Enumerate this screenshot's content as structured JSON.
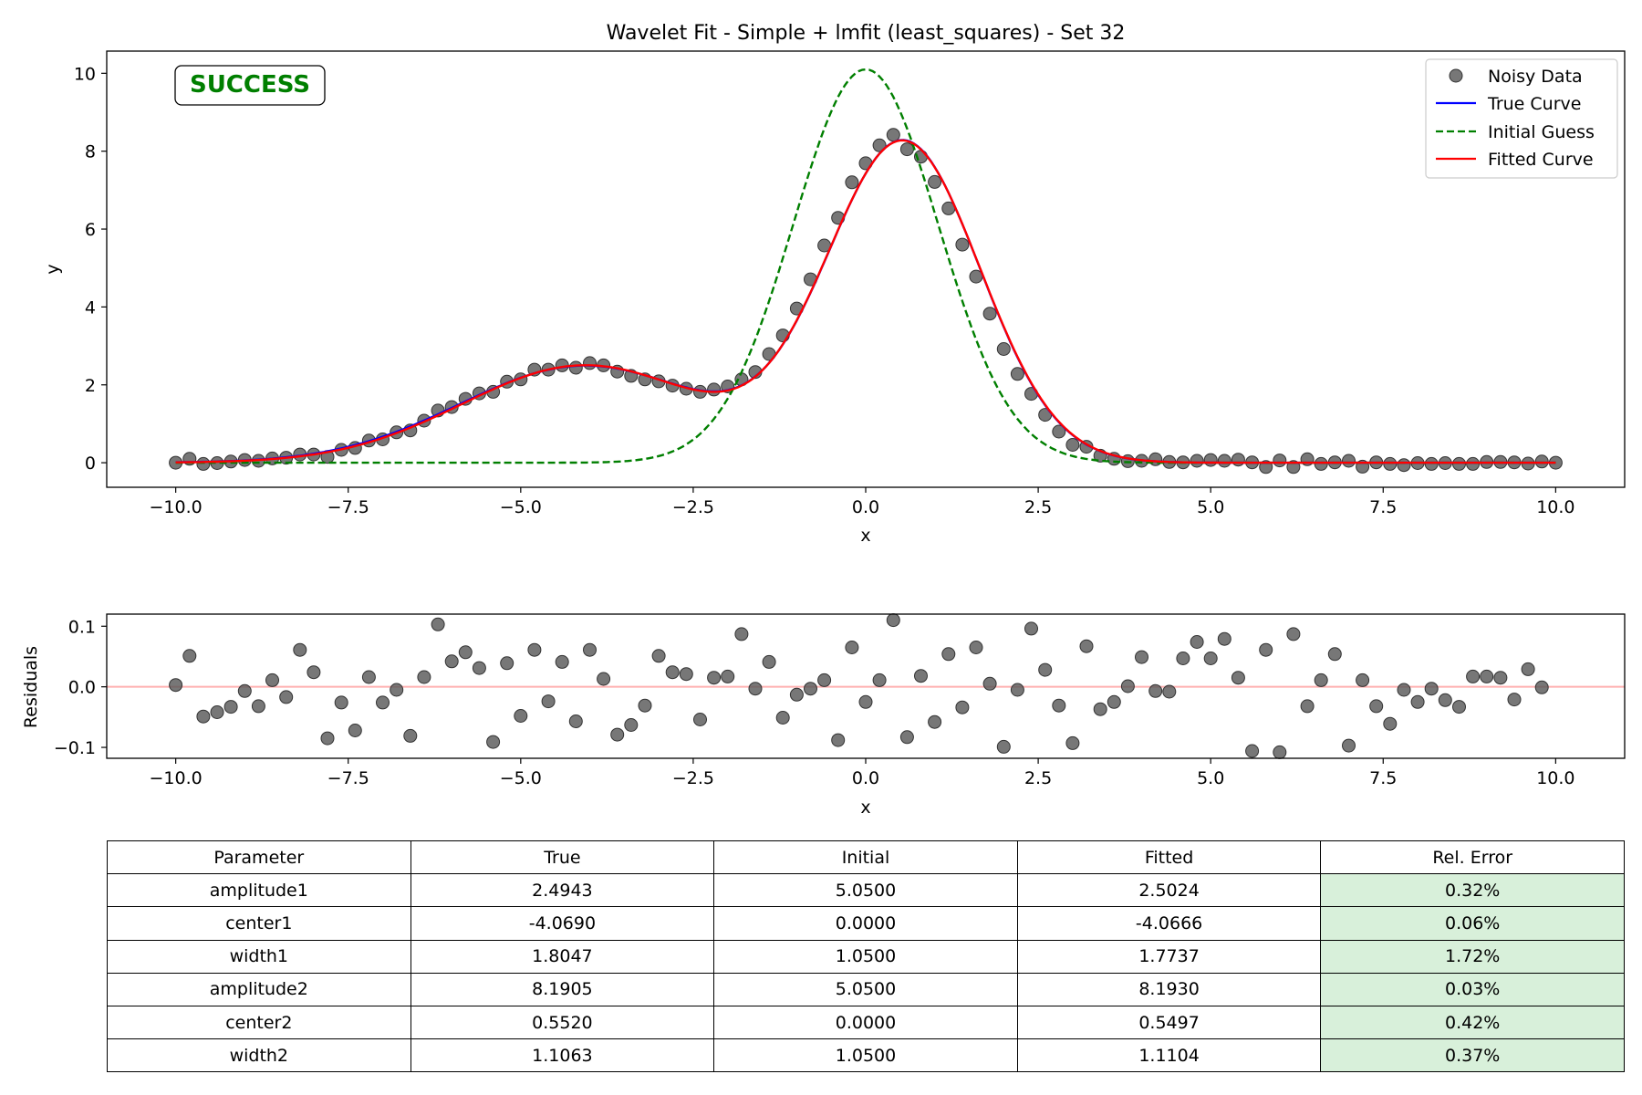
{
  "chart_data": [
    {
      "type": "line",
      "title": "Wavelet Fit - Simple + lmfit (least_squares) - Set 32",
      "xlabel": "x",
      "ylabel": "y",
      "xlim": [
        -11.0,
        11.0
      ],
      "ylim": [
        -0.63,
        10.57
      ],
      "xticks": [
        -10.0,
        -7.5,
        -5.0,
        -2.5,
        0.0,
        2.5,
        5.0,
        7.5,
        10.0
      ],
      "xtick_labels": [
        "−10.0",
        "−7.5",
        "−5.0",
        "−2.5",
        "0.0",
        "2.5",
        "5.0",
        "7.5",
        "10.0"
      ],
      "yticks": [
        0,
        2,
        4,
        6,
        8,
        10
      ],
      "ytick_labels": [
        "0",
        "2",
        "4",
        "6",
        "8",
        "10"
      ],
      "grid": false,
      "legend_position": "top-right",
      "status_text": "SUCCESS",
      "status_color": "#007f00",
      "series": [
        {
          "name": "Noisy Data",
          "kind": "scatter",
          "color": "#555555",
          "y": [
            0.0,
            0.1,
            -0.03,
            -0.01,
            0.03,
            0.07,
            0.05,
            0.11,
            0.13,
            0.21,
            0.21,
            0.15,
            0.33,
            0.38,
            0.57,
            0.6,
            0.78,
            0.83,
            1.08,
            1.34,
            1.43,
            1.64,
            1.78,
            1.82,
            2.08,
            2.14,
            2.39,
            2.39,
            2.5,
            2.44,
            2.56,
            2.5,
            2.34,
            2.23,
            2.14,
            2.09,
            1.98,
            1.9,
            1.82,
            1.88,
            1.96,
            2.14,
            2.33,
            2.79,
            3.27,
            3.96,
            4.71,
            5.58,
            6.29,
            7.2,
            7.69,
            8.15,
            8.42,
            8.05,
            7.86,
            7.21,
            6.53,
            5.6,
            4.78,
            3.83,
            2.92,
            2.28,
            1.77,
            1.23,
            0.8,
            0.46,
            0.41,
            0.18,
            0.1,
            0.04,
            0.05,
            0.09,
            0.02,
            0.01,
            0.05,
            0.07,
            0.05,
            0.08,
            0.01,
            -0.11,
            0.06,
            -0.11,
            0.09,
            -0.03,
            0.01,
            0.05,
            -0.1,
            0.01,
            -0.03,
            -0.06,
            -0.01,
            -0.03,
            -0.01,
            -0.03,
            -0.03,
            0.02,
            0.02,
            0.01,
            -0.02,
            0.03,
            0.0
          ]
        },
        {
          "name": "True Curve",
          "kind": "line",
          "color": "#0000ff",
          "params": {
            "amplitude1": 2.4943,
            "center1": -4.069,
            "width1": 1.8047,
            "amplitude2": 8.1905,
            "center2": 0.552,
            "width2": 1.1063
          }
        },
        {
          "name": "Initial Guess",
          "kind": "line",
          "dash": true,
          "color": "#007f00",
          "params": {
            "amplitude1": 5.05,
            "center1": 0.0,
            "width1": 1.05,
            "amplitude2": 5.05,
            "center2": 0.0,
            "width2": 1.05
          }
        },
        {
          "name": "Fitted Curve",
          "kind": "line",
          "color": "#ff0000",
          "params": {
            "amplitude1": 2.5024,
            "center1": -4.0666,
            "width1": 1.7737,
            "amplitude2": 8.193,
            "center2": 0.5497,
            "width2": 1.1104
          }
        }
      ]
    },
    {
      "type": "scatter",
      "title": "",
      "xlabel": "x",
      "ylabel": "Residuals",
      "xlim": [
        -11.0,
        11.0
      ],
      "ylim": [
        -0.118,
        0.12
      ],
      "xticks": [
        -10.0,
        -7.5,
        -5.0,
        -2.5,
        0.0,
        2.5,
        5.0,
        7.5,
        10.0
      ],
      "xtick_labels": [
        "−10.0",
        "−7.5",
        "−5.0",
        "−2.5",
        "0.0",
        "2.5",
        "5.0",
        "7.5",
        "10.0"
      ],
      "yticks": [
        -0.1,
        0.0,
        0.1
      ],
      "ytick_labels": [
        "−0.1",
        "0.0",
        "0.1"
      ],
      "zero_line_color": "#ffb0b0",
      "series": [
        {
          "name": "",
          "color": "#555555",
          "y": [
            0.003,
            0.051,
            -0.049,
            -0.042,
            -0.033,
            -0.007,
            -0.032,
            0.011,
            -0.017,
            0.061,
            0.024,
            -0.085,
            -0.026,
            -0.072,
            0.016,
            -0.026,
            -0.005,
            -0.081,
            0.016,
            0.103,
            0.042,
            0.057,
            0.031,
            -0.091,
            0.039,
            -0.048,
            0.061,
            -0.024,
            0.041,
            -0.057,
            0.061,
            0.013,
            -0.079,
            -0.063,
            -0.031,
            0.051,
            0.024,
            0.021,
            -0.054,
            0.015,
            0.017,
            0.087,
            -0.003,
            0.041,
            -0.051,
            -0.013,
            -0.003,
            0.011,
            -0.088,
            0.065,
            -0.025,
            0.011,
            0.11,
            -0.083,
            0.018,
            -0.058,
            0.054,
            -0.034,
            0.065,
            0.005,
            -0.099,
            -0.005,
            0.096,
            0.028,
            -0.031,
            -0.093,
            0.067,
            -0.037,
            -0.025,
            0.001,
            0.049,
            -0.007,
            -0.008,
            0.047,
            0.074,
            0.047,
            0.079,
            0.015,
            -0.106,
            0.061,
            -0.108,
            0.087,
            -0.032,
            0.011,
            0.054,
            -0.097,
            0.011,
            -0.032,
            -0.061,
            -0.005,
            -0.025,
            -0.003,
            -0.022,
            -0.033,
            0.017,
            0.017,
            0.015,
            -0.021,
            0.029,
            -0.001
          ]
        }
      ]
    }
  ],
  "table": {
    "headers": [
      "Parameter",
      "True",
      "Initial",
      "Fitted",
      "Rel. Error"
    ],
    "rows": [
      [
        "amplitude1",
        "2.4943",
        "5.0500",
        "2.5024",
        "0.32%"
      ],
      [
        "center1",
        "-4.0690",
        "0.0000",
        "-4.0666",
        "0.06%"
      ],
      [
        "width1",
        "1.8047",
        "1.0500",
        "1.7737",
        "1.72%"
      ],
      [
        "amplitude2",
        "8.1905",
        "5.0500",
        "8.1930",
        "0.03%"
      ],
      [
        "center2",
        "0.5520",
        "0.0000",
        "0.5497",
        "0.42%"
      ],
      [
        "width2",
        "1.1063",
        "1.0500",
        "1.1104",
        "0.37%"
      ]
    ],
    "error_cell_color": "#d8f0da"
  }
}
